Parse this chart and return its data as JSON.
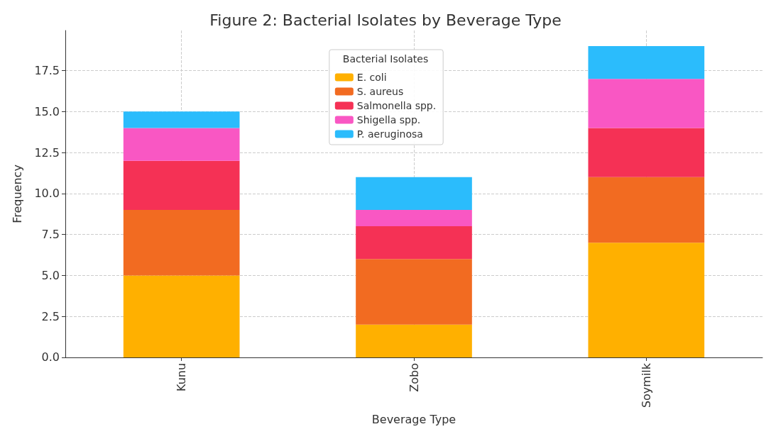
{
  "chart_data": {
    "type": "bar",
    "title": "Figure 2: Bacterial Isolates by Beverage Type",
    "xlabel": "Beverage Type",
    "ylabel": "Frequency",
    "legend_title": "Bacterial Isolates",
    "categories": [
      "Kunu",
      "Zobo",
      "Soymilk"
    ],
    "series": [
      {
        "name": "E. coli",
        "color": "#ffb000",
        "values": [
          5,
          2,
          7
        ]
      },
      {
        "name": "S. aureus",
        "color": "#f26b21",
        "values": [
          4,
          4,
          4
        ]
      },
      {
        "name": "Salmonella spp.",
        "color": "#f53155",
        "values": [
          3,
          2,
          3
        ]
      },
      {
        "name": "Shigella spp.",
        "color": "#f957c3",
        "values": [
          2,
          1,
          3
        ]
      },
      {
        "name": "P. aeruginosa",
        "color": "#2bbcfc",
        "values": [
          1,
          2,
          2
        ]
      }
    ],
    "stacked": true,
    "ylim": [
      0,
      19.95
    ],
    "yticks": [
      {
        "value": 0,
        "label": "0.0"
      },
      {
        "value": 2.5,
        "label": "2.5"
      },
      {
        "value": 5,
        "label": "5.0"
      },
      {
        "value": 7.5,
        "label": "7.5"
      },
      {
        "value": 10,
        "label": "10.0"
      },
      {
        "value": 12.5,
        "label": "12.5"
      },
      {
        "value": 15,
        "label": "15.0"
      },
      {
        "value": 17.5,
        "label": "17.5"
      }
    ],
    "grid": true,
    "legend": "top"
  }
}
